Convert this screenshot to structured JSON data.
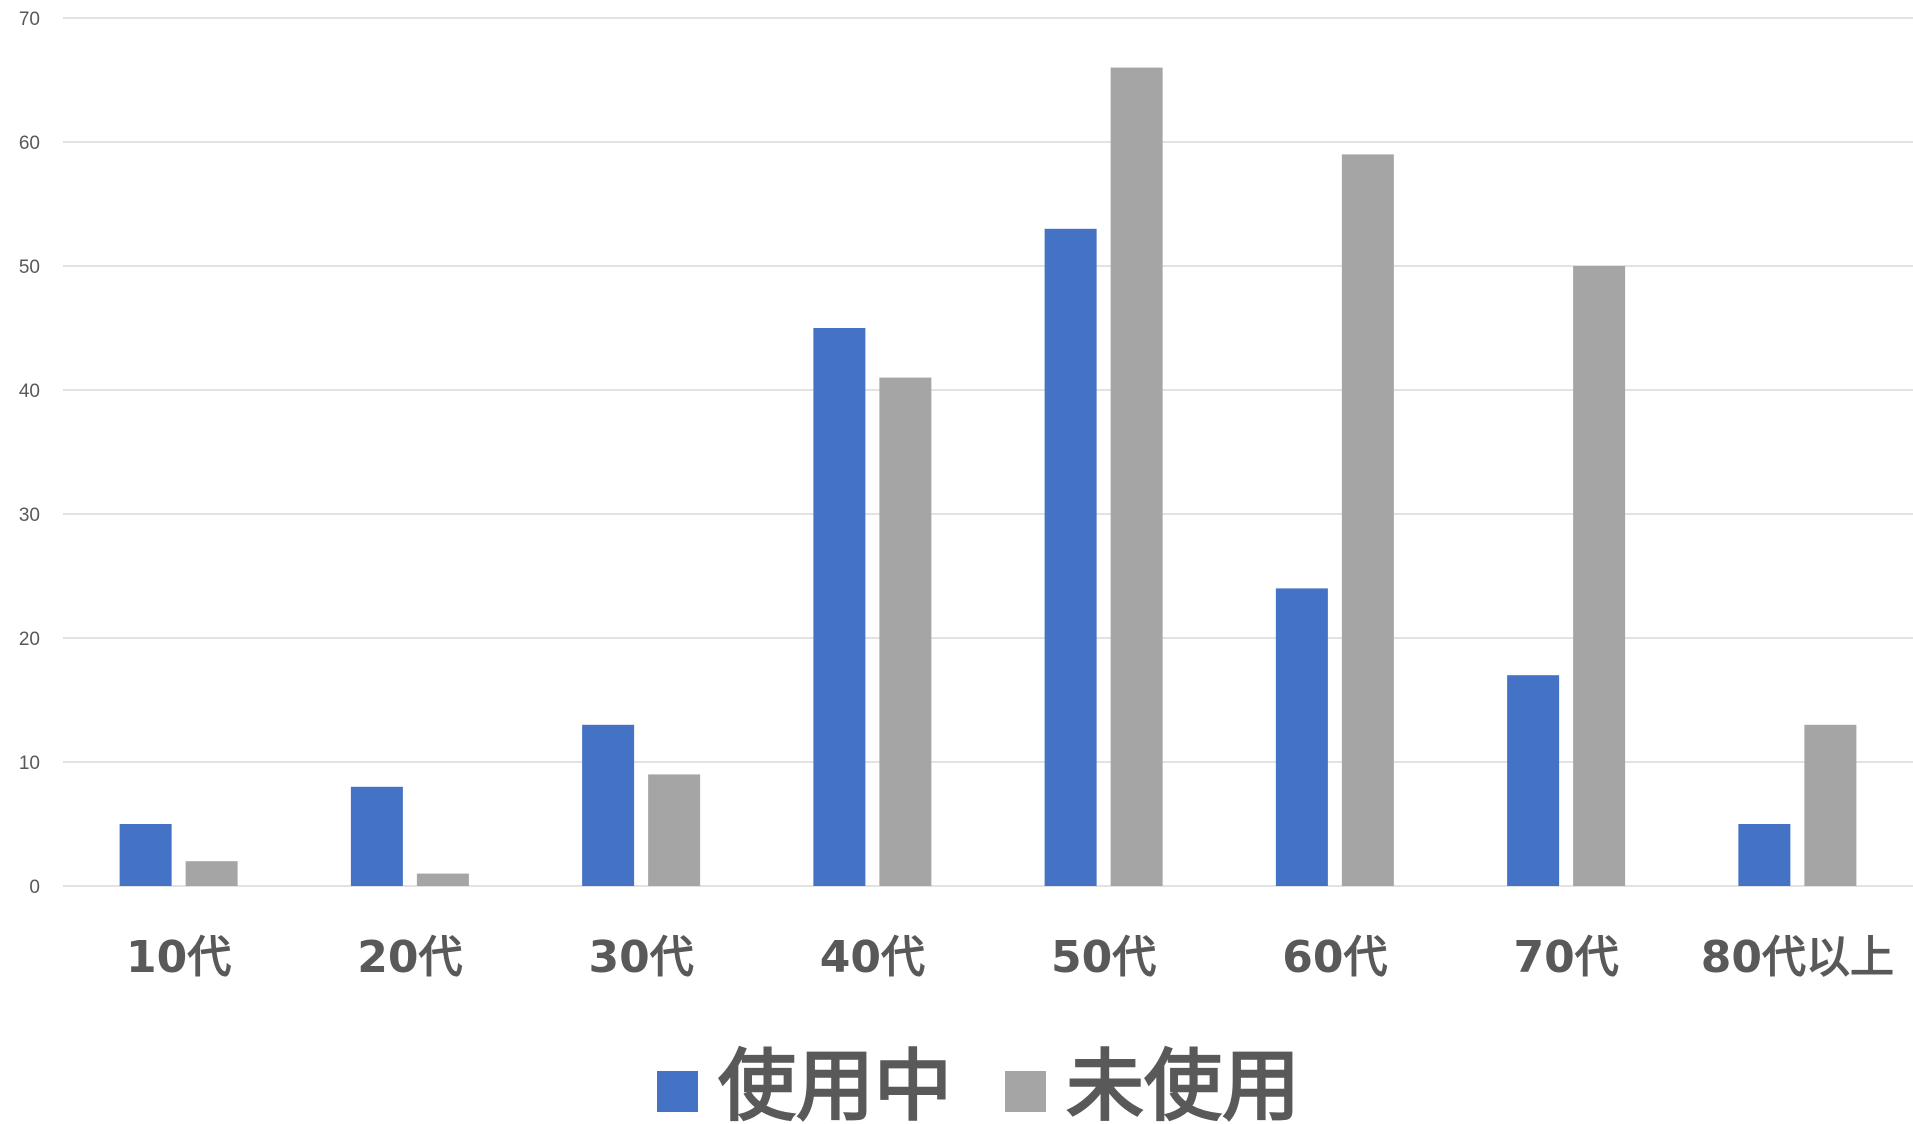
{
  "chart_data": {
    "type": "bar",
    "categories": [
      "10代",
      "20代",
      "30代",
      "40代",
      "50代",
      "60代",
      "70代",
      "80代以上"
    ],
    "series": [
      {
        "name": "使用中",
        "color": "#4472C4",
        "values": [
          5,
          8,
          13,
          45,
          53,
          24,
          17,
          5
        ]
      },
      {
        "name": "未使用",
        "color": "#A5A5A5",
        "values": [
          2,
          1,
          9,
          41,
          66,
          59,
          50,
          13
        ]
      }
    ],
    "ylim": [
      0,
      70
    ],
    "yticks": [
      0,
      10,
      20,
      30,
      40,
      50,
      60,
      70
    ],
    "grid": true,
    "legend_position": "bottom",
    "title": "",
    "xlabel": "",
    "ylabel": ""
  }
}
